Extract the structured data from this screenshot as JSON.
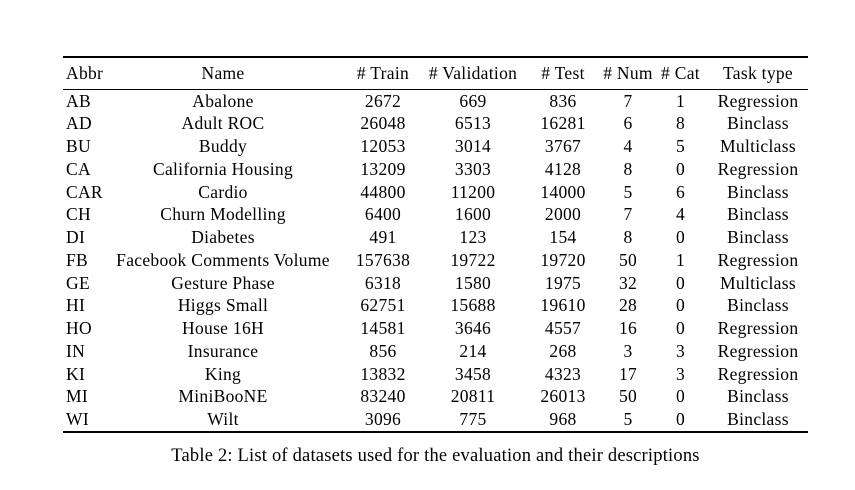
{
  "table": {
    "columns": [
      {
        "key": "abbr",
        "label": "Abbr"
      },
      {
        "key": "name",
        "label": "Name"
      },
      {
        "key": "train",
        "label": "# Train"
      },
      {
        "key": "validation",
        "label": "# Validation"
      },
      {
        "key": "test",
        "label": "# Test"
      },
      {
        "key": "num",
        "label": "# Num"
      },
      {
        "key": "cat",
        "label": "# Cat"
      },
      {
        "key": "task",
        "label": "Task type"
      }
    ],
    "rows": [
      {
        "abbr": "AB",
        "name": "Abalone",
        "train": "2672",
        "validation": "669",
        "test": "836",
        "num": "7",
        "cat": "1",
        "task": "Regression"
      },
      {
        "abbr": "AD",
        "name": "Adult ROC",
        "train": "26048",
        "validation": "6513",
        "test": "16281",
        "num": "6",
        "cat": "8",
        "task": "Binclass"
      },
      {
        "abbr": "BU",
        "name": "Buddy",
        "train": "12053",
        "validation": "3014",
        "test": "3767",
        "num": "4",
        "cat": "5",
        "task": "Multiclass"
      },
      {
        "abbr": "CA",
        "name": "California Housing",
        "train": "13209",
        "validation": "3303",
        "test": "4128",
        "num": "8",
        "cat": "0",
        "task": "Regression"
      },
      {
        "abbr": "CAR",
        "name": "Cardio",
        "train": "44800",
        "validation": "11200",
        "test": "14000",
        "num": "5",
        "cat": "6",
        "task": "Binclass"
      },
      {
        "abbr": "CH",
        "name": "Churn Modelling",
        "train": "6400",
        "validation": "1600",
        "test": "2000",
        "num": "7",
        "cat": "4",
        "task": "Binclass"
      },
      {
        "abbr": "DI",
        "name": "Diabetes",
        "train": "491",
        "validation": "123",
        "test": "154",
        "num": "8",
        "cat": "0",
        "task": "Binclass"
      },
      {
        "abbr": "FB",
        "name": "Facebook Comments Volume",
        "train": "157638",
        "validation": "19722",
        "test": "19720",
        "num": "50",
        "cat": "1",
        "task": "Regression"
      },
      {
        "abbr": "GE",
        "name": "Gesture Phase",
        "train": "6318",
        "validation": "1580",
        "test": "1975",
        "num": "32",
        "cat": "0",
        "task": "Multiclass"
      },
      {
        "abbr": "HI",
        "name": "Higgs Small",
        "train": "62751",
        "validation": "15688",
        "test": "19610",
        "num": "28",
        "cat": "0",
        "task": "Binclass"
      },
      {
        "abbr": "HO",
        "name": "House 16H",
        "train": "14581",
        "validation": "3646",
        "test": "4557",
        "num": "16",
        "cat": "0",
        "task": "Regression"
      },
      {
        "abbr": "IN",
        "name": "Insurance",
        "train": "856",
        "validation": "214",
        "test": "268",
        "num": "3",
        "cat": "3",
        "task": "Regression"
      },
      {
        "abbr": "KI",
        "name": "King",
        "train": "13832",
        "validation": "3458",
        "test": "4323",
        "num": "17",
        "cat": "3",
        "task": "Regression"
      },
      {
        "abbr": "MI",
        "name": "MiniBooNE",
        "train": "83240",
        "validation": "20811",
        "test": "26013",
        "num": "50",
        "cat": "0",
        "task": "Binclass"
      },
      {
        "abbr": "WI",
        "name": "Wilt",
        "train": "3096",
        "validation": "775",
        "test": "968",
        "num": "5",
        "cat": "0",
        "task": "Binclass"
      }
    ]
  },
  "caption": "Table 2: List of datasets used for the evaluation and their descriptions"
}
